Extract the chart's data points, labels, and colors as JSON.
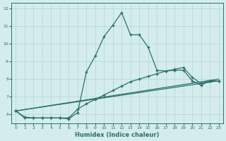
{
  "xlabel": "Humidex (Indice chaleur)",
  "background_color": "#d4edec",
  "grid_color": "#b8d8d8",
  "line_color": "#2a7068",
  "xlim": [
    -0.5,
    23.5
  ],
  "ylim": [
    5.5,
    12.3
  ],
  "yticks": [
    6,
    7,
    8,
    9,
    10,
    11,
    12
  ],
  "xticks": [
    0,
    1,
    2,
    3,
    4,
    5,
    6,
    7,
    8,
    9,
    10,
    11,
    12,
    13,
    14,
    15,
    16,
    17,
    18,
    19,
    20,
    21,
    22,
    23
  ],
  "series": {
    "main": {
      "x": [
        0,
        1,
        2,
        3,
        4,
        5,
        6,
        7,
        8,
        9,
        10,
        11,
        12,
        13,
        14,
        15,
        16,
        17,
        18,
        19,
        20,
        21,
        22,
        23
      ],
      "y": [
        6.2,
        5.8,
        5.8,
        5.8,
        5.8,
        5.8,
        5.75,
        6.1,
        8.4,
        9.3,
        10.4,
        11.05,
        11.75,
        10.5,
        10.5,
        9.8,
        8.5,
        8.45,
        8.5,
        8.5,
        7.9,
        7.65,
        7.9,
        7.9
      ]
    },
    "line2": {
      "x": [
        0,
        1,
        2,
        3,
        4,
        5,
        6,
        7,
        8,
        9,
        10,
        11,
        12,
        13,
        14,
        15,
        16,
        17,
        18,
        19,
        20,
        21,
        22,
        23
      ],
      "y": [
        6.2,
        5.85,
        5.8,
        5.8,
        5.8,
        5.8,
        5.8,
        6.3,
        6.6,
        6.85,
        7.1,
        7.35,
        7.6,
        7.85,
        8.0,
        8.15,
        8.3,
        8.45,
        8.55,
        8.65,
        8.1,
        7.75,
        7.9,
        7.9
      ]
    },
    "line3": {
      "x": [
        0,
        23
      ],
      "y": [
        6.2,
        8.0
      ]
    },
    "line4": {
      "x": [
        0,
        23
      ],
      "y": [
        6.2,
        7.9
      ]
    }
  }
}
